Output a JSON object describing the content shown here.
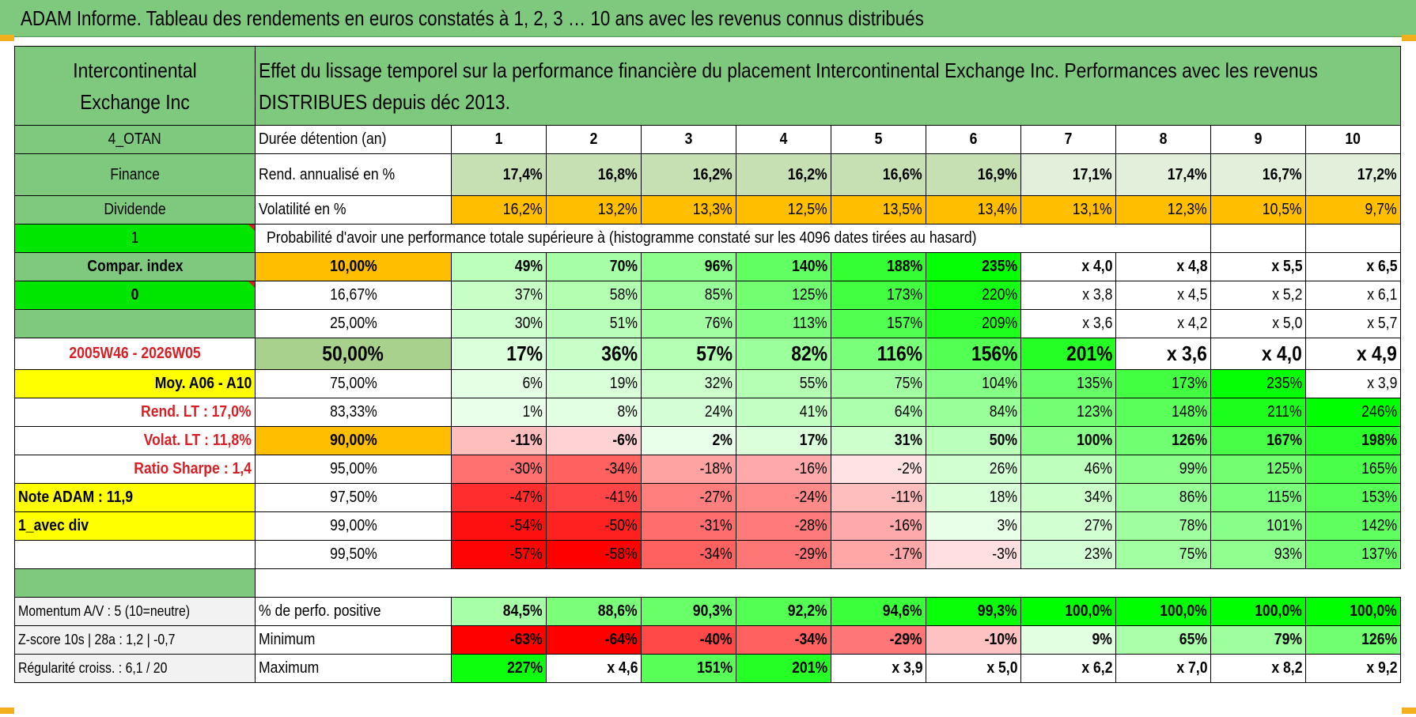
{
  "title": "ADAM Informe. Tableau des rendements en euros constatés à 1, 2, 3 … 10 ans avec les revenus connus distribués",
  "header": {
    "company": "Intercontinental Exchange Inc",
    "description": "Effet du lissage temporel sur la performance financière du placement Intercontinental Exchange Inc. Performances avec les revenus DISTRIBUES depuis déc 2013."
  },
  "years": [
    "1",
    "2",
    "3",
    "4",
    "5",
    "6",
    "7",
    "8",
    "9",
    "10"
  ],
  "left_panel": {
    "code": "4_OTAN",
    "sector": "Finance",
    "type": "Dividende",
    "one": "1",
    "compar_index": "Compar. index",
    "zero": "0",
    "period": "2005W46 - 2026W05",
    "moy": "Moy. A06 - A10",
    "rend_lt": "Rend. LT :    17,0%",
    "volat_lt": "Volat. LT :    11,8%",
    "sharpe": "Ratio Sharpe :    1,4",
    "note": "Note ADAM : 11,9",
    "avec_div": "1_avec div",
    "momentum": "Momentum A/V : 5 (10=neutre)",
    "zscore": "Z-score 10s | 28a : 1,2 | -0,7",
    "regularite": "Régularité croiss. : 6,1 / 20"
  },
  "labels": {
    "duree": "Durée détention (an)",
    "rend": "Rend. annualisé en %",
    "volat": "Volatilité en %",
    "proba": "Probabilité d'avoir une performance totale supérieure à (histogramme constaté sur les 4096 dates tirées au hasard)",
    "perfo_pos": "% de perfo. positive",
    "minimum": "Minimum",
    "maximum": "Maximum"
  },
  "rend_values": [
    "17,4%",
    "16,8%",
    "16,2%",
    "16,2%",
    "16,6%",
    "16,9%",
    "17,1%",
    "17,4%",
    "16,7%",
    "17,2%"
  ],
  "volat_values": [
    "16,2%",
    "13,2%",
    "13,3%",
    "12,5%",
    "13,5%",
    "13,4%",
    "13,1%",
    "12,3%",
    "10,5%",
    "9,7%"
  ],
  "prob_rows": [
    {
      "pct": "10,00%",
      "values": [
        "49%",
        "70%",
        "96%",
        "140%",
        "188%",
        "235%",
        "x 4,0",
        "x 4,8",
        "x 5,5",
        "x 6,5"
      ]
    },
    {
      "pct": "16,67%",
      "values": [
        "37%",
        "58%",
        "85%",
        "125%",
        "173%",
        "220%",
        "x 3,8",
        "x 4,5",
        "x 5,2",
        "x 6,1"
      ]
    },
    {
      "pct": "25,00%",
      "values": [
        "30%",
        "51%",
        "76%",
        "113%",
        "157%",
        "209%",
        "x 3,6",
        "x 4,2",
        "x 5,0",
        "x 5,7"
      ]
    },
    {
      "pct": "50,00%",
      "values": [
        "17%",
        "36%",
        "57%",
        "82%",
        "116%",
        "156%",
        "201%",
        "x 3,6",
        "x 4,0",
        "x 4,9"
      ]
    },
    {
      "pct": "75,00%",
      "values": [
        "6%",
        "19%",
        "32%",
        "55%",
        "75%",
        "104%",
        "135%",
        "173%",
        "235%",
        "x 3,9"
      ]
    },
    {
      "pct": "83,33%",
      "values": [
        "1%",
        "8%",
        "24%",
        "41%",
        "64%",
        "84%",
        "123%",
        "148%",
        "211%",
        "246%"
      ]
    },
    {
      "pct": "90,00%",
      "values": [
        "-11%",
        "-6%",
        "2%",
        "17%",
        "31%",
        "50%",
        "100%",
        "126%",
        "167%",
        "198%"
      ]
    },
    {
      "pct": "95,00%",
      "values": [
        "-30%",
        "-34%",
        "-18%",
        "-16%",
        "-2%",
        "26%",
        "46%",
        "99%",
        "125%",
        "165%"
      ]
    },
    {
      "pct": "97,50%",
      "values": [
        "-47%",
        "-41%",
        "-27%",
        "-24%",
        "-11%",
        "18%",
        "34%",
        "86%",
        "115%",
        "153%"
      ]
    },
    {
      "pct": "99,00%",
      "values": [
        "-54%",
        "-50%",
        "-31%",
        "-28%",
        "-16%",
        "3%",
        "27%",
        "78%",
        "101%",
        "142%"
      ]
    },
    {
      "pct": "99,50%",
      "values": [
        "-57%",
        "-58%",
        "-34%",
        "-29%",
        "-17%",
        "-3%",
        "23%",
        "75%",
        "93%",
        "137%"
      ]
    }
  ],
  "perfo_pos": [
    "84,5%",
    "88,6%",
    "90,3%",
    "92,2%",
    "94,6%",
    "99,3%",
    "100,0%",
    "100,0%",
    "100,0%",
    "100,0%"
  ],
  "minimum": [
    "-63%",
    "-64%",
    "-40%",
    "-34%",
    "-29%",
    "-10%",
    "9%",
    "65%",
    "79%",
    "126%"
  ],
  "maximum": [
    "227%",
    "x 4,6",
    "151%",
    "201%",
    "x 3,9",
    "x 5,0",
    "x 6,2",
    "x 7,0",
    "x 8,2",
    "x 9,2"
  ],
  "colors": {
    "header_green": "#7ec97e",
    "bright_green": "#00e600",
    "orange": "#ffbf00",
    "yellow": "#ffff00",
    "red_text": "#d81f26"
  }
}
